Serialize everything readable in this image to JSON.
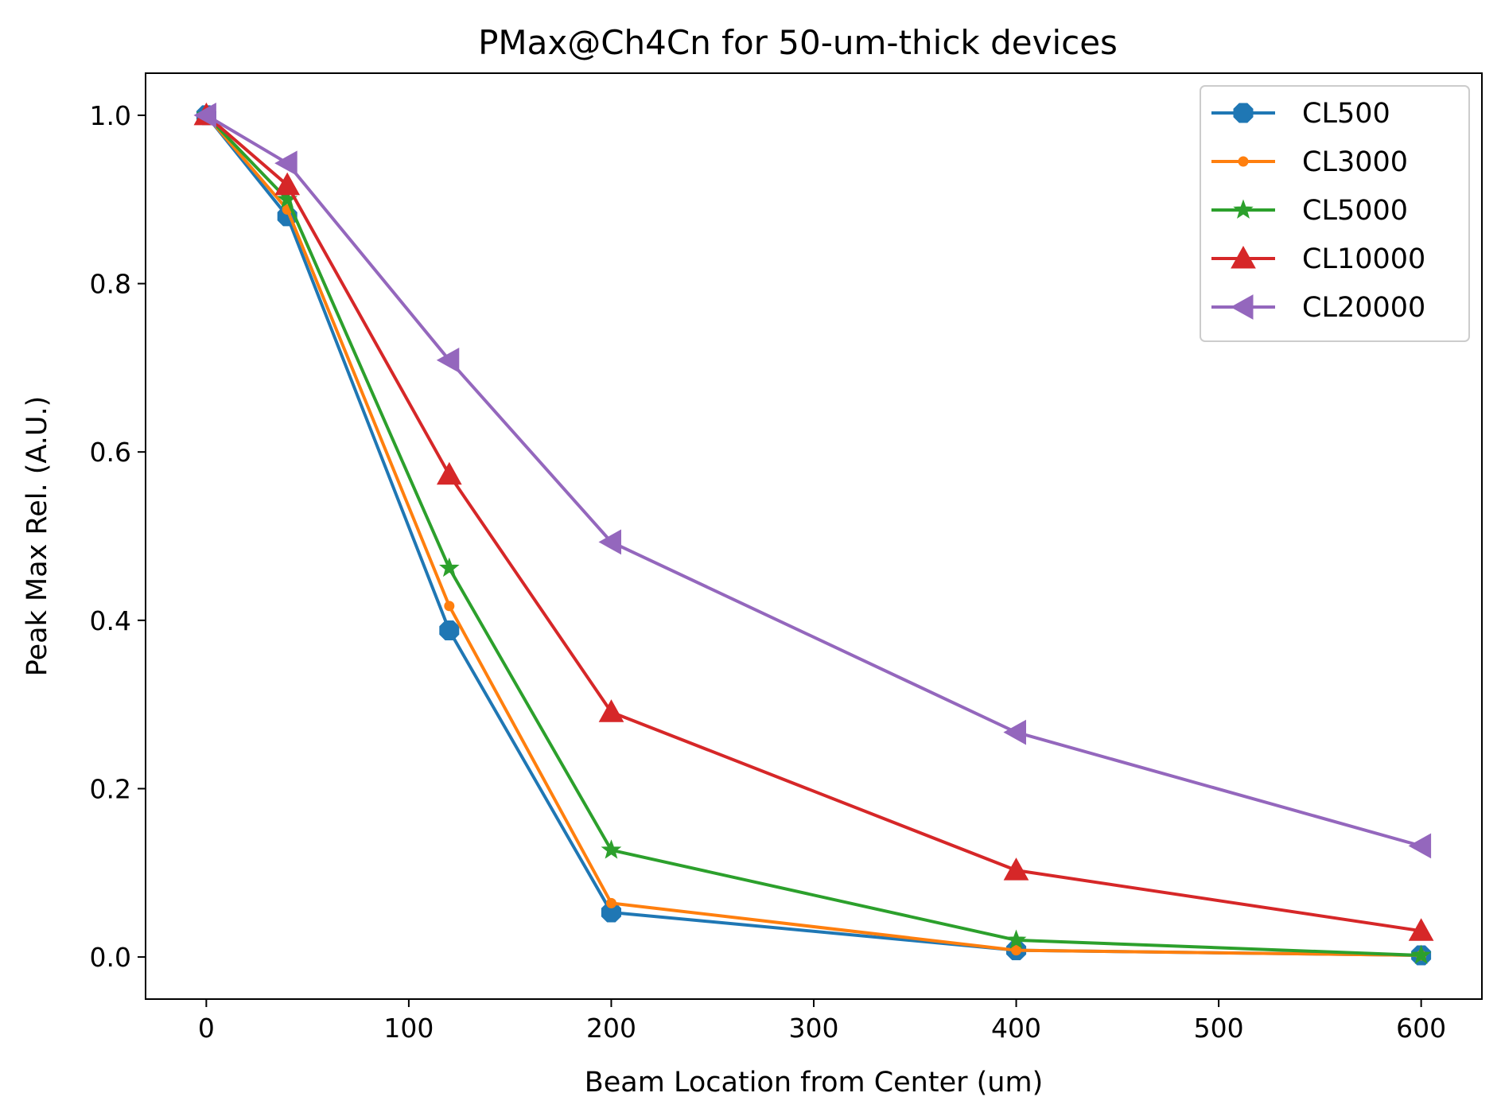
{
  "chart_data": {
    "type": "line",
    "title": "PMax@Ch4Cn for 50-um-thick devices",
    "xlabel": "Beam Location from Center (um)",
    "ylabel": "Peak Max Rel. (A.U.)",
    "xlim": [
      -30,
      630
    ],
    "ylim": [
      -0.05,
      1.05
    ],
    "xticks": [
      0,
      100,
      200,
      300,
      400,
      500,
      600
    ],
    "xtick_labels": [
      "0",
      "100",
      "200",
      "300",
      "400",
      "500",
      "600"
    ],
    "yticks": [
      0.0,
      0.2,
      0.4,
      0.6,
      0.8,
      1.0
    ],
    "ytick_labels": [
      "0.0",
      "0.2",
      "0.4",
      "0.6",
      "0.8",
      "1.0"
    ],
    "grid": false,
    "legend_position": "top-right",
    "x": [
      0,
      40,
      120,
      200,
      400,
      600
    ],
    "series": [
      {
        "name": "CL500",
        "color": "#1f77b4",
        "marker": "octagon",
        "values": [
          1.0,
          0.88,
          0.388,
          0.053,
          0.008,
          0.002
        ]
      },
      {
        "name": "CL3000",
        "color": "#ff7f0e",
        "marker": "point",
        "values": [
          1.0,
          0.888,
          0.417,
          0.064,
          0.008,
          0.002
        ]
      },
      {
        "name": "CL5000",
        "color": "#2ca02c",
        "marker": "star",
        "values": [
          1.0,
          0.9,
          0.462,
          0.127,
          0.02,
          0.002
        ]
      },
      {
        "name": "CL10000",
        "color": "#d62728",
        "marker": "triangle-up",
        "values": [
          1.0,
          0.917,
          0.573,
          0.291,
          0.103,
          0.031
        ]
      },
      {
        "name": "CL20000",
        "color": "#9467bd",
        "marker": "triangle-left",
        "values": [
          1.0,
          0.943,
          0.709,
          0.493,
          0.267,
          0.132
        ]
      }
    ]
  }
}
